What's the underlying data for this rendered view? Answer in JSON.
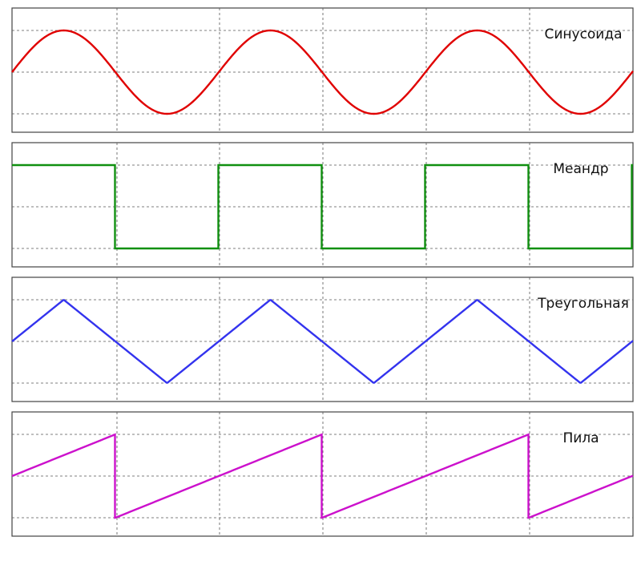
{
  "panels": [
    {
      "label": "Синусоида"
    },
    {
      "label": "Меандр"
    },
    {
      "label": "Треугольная"
    },
    {
      "label": "Пила"
    }
  ]
}
